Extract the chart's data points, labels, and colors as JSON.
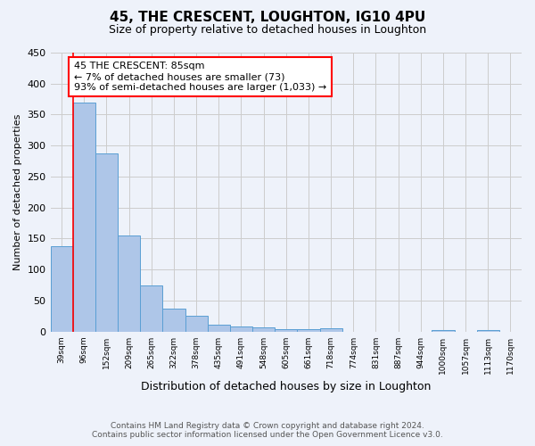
{
  "title": "45, THE CRESCENT, LOUGHTON, IG10 4PU",
  "subtitle": "Size of property relative to detached houses in Loughton",
  "xlabel": "Distribution of detached houses by size in Loughton",
  "ylabel": "Number of detached properties",
  "footer_line1": "Contains HM Land Registry data © Crown copyright and database right 2024.",
  "footer_line2": "Contains public sector information licensed under the Open Government Licence v3.0.",
  "bar_labels": [
    "39sqm",
    "96sqm",
    "152sqm",
    "209sqm",
    "265sqm",
    "322sqm",
    "378sqm",
    "435sqm",
    "491sqm",
    "548sqm",
    "605sqm",
    "661sqm",
    "718sqm",
    "774sqm",
    "831sqm",
    "887sqm",
    "944sqm",
    "1000sqm",
    "1057sqm",
    "1113sqm",
    "1170sqm"
  ],
  "bar_values": [
    137,
    370,
    288,
    155,
    74,
    37,
    25,
    11,
    8,
    7,
    4,
    4,
    5,
    0,
    0,
    0,
    0,
    3,
    0,
    3,
    0
  ],
  "bar_color": "#aec6e8",
  "bar_edge_color": "#5a9fd4",
  "annotation_line1": "45 THE CRESCENT: 85sqm",
  "annotation_line2": "← 7% of detached houses are smaller (73)",
  "annotation_line3": "93% of semi-detached houses are larger (1,033) →",
  "ylim": [
    0,
    450
  ],
  "yticks": [
    0,
    50,
    100,
    150,
    200,
    250,
    300,
    350,
    400,
    450
  ],
  "bg_color": "#eef2fa",
  "plot_bg_color": "#eef2fa",
  "grid_color": "#cccccc",
  "vline_bar_index": 0,
  "vline_right_edge": true
}
